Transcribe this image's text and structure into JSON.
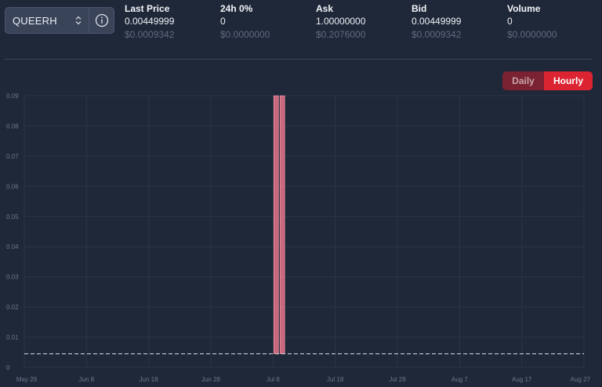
{
  "selector": {
    "value": "QUEERH",
    "updown_icon": "chevron-up-down-icon",
    "info_icon": "info-icon"
  },
  "stats": [
    {
      "label": "Last Price",
      "value": "0.00449999",
      "usd": "$0.0009342"
    },
    {
      "label": "24h 0%",
      "value": "0",
      "usd": "$0.0000000"
    },
    {
      "label": "Ask",
      "value": "1.00000000",
      "usd": "$0.2076000"
    },
    {
      "label": "Bid",
      "value": "0.00449999",
      "usd": "$0.0009342"
    },
    {
      "label": "Volume",
      "value": "0",
      "usd": "$0.0000000"
    }
  ],
  "toggle": {
    "daily": "Daily",
    "hourly": "Hourly",
    "active": "hourly"
  },
  "colors": {
    "background": "#1f2839",
    "accent": "#dc2332",
    "candle": "#e8728a",
    "grid": "#2b3447",
    "axis_text": "#6c778c",
    "reference_line": "#c9cfd9"
  },
  "chart_data": {
    "type": "bar",
    "ylim": [
      0,
      0.09
    ],
    "y_ticks": [
      "0.09",
      "0.08",
      "0.07",
      "0.06",
      "0.05",
      "0.04",
      "0.03",
      "0.02",
      "0.01",
      "0"
    ],
    "x_ticks": [
      "May 29",
      "Jun 8",
      "Jun 18",
      "Jun 28",
      "Jul 8",
      "Jul 18",
      "Jul 28",
      "Aug 7",
      "Aug 17",
      "Aug 27"
    ],
    "x_range": [
      "May 29",
      "Aug 27"
    ],
    "reference_line": {
      "value": 0.00449999,
      "style": "dashed"
    },
    "bars": [
      {
        "x": "Jul 9",
        "low": 0.00449999,
        "high": 1.0
      },
      {
        "x": "Jul 10",
        "low": 0.00449999,
        "high": 1.0
      }
    ],
    "grid": true,
    "legend": "none"
  }
}
